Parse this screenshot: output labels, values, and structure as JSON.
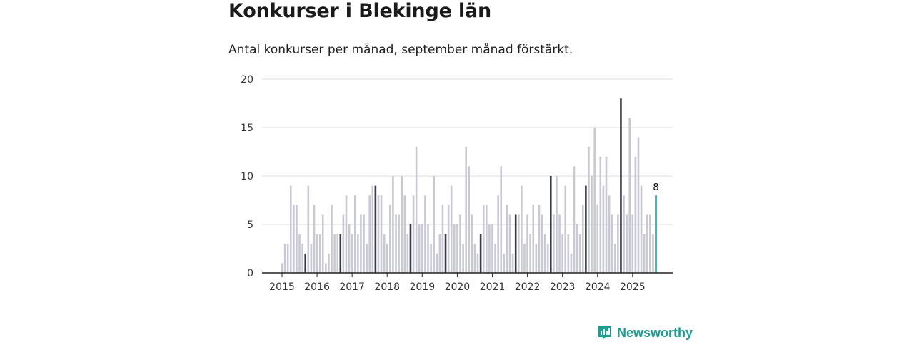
{
  "header": {
    "title": "Konkurser i Blekinge län",
    "subtitle": "Antal konkurser per månad, september månad förstärkt."
  },
  "brand": {
    "name": "Newsworthy",
    "color": "#1a9e8f"
  },
  "colors": {
    "normal": "#c9c9d3",
    "highlight": "#3a3a45",
    "latest": "#12a89a",
    "grid": "#dddddd",
    "axis": "#222222"
  },
  "chart_data": {
    "type": "bar",
    "title": "Konkurser i Blekinge län",
    "subtitle": "Antal konkurser per månad, september månad förstärkt.",
    "xlabel": "",
    "ylabel": "",
    "ylim": [
      0,
      20
    ],
    "yticks": [
      0,
      5,
      10,
      15,
      20
    ],
    "grid": true,
    "start": "2015-01",
    "highlight_month": 9,
    "year_labels": [
      "2015",
      "2016",
      "2017",
      "2018",
      "2019",
      "2020",
      "2021",
      "2022",
      "2023",
      "2024",
      "2025"
    ],
    "values": [
      1,
      3,
      3,
      9,
      7,
      7,
      4,
      3,
      2,
      9,
      3,
      7,
      4,
      4,
      6,
      1,
      2,
      7,
      4,
      4,
      4,
      6,
      8,
      5,
      4,
      8,
      4,
      6,
      6,
      3,
      8,
      9,
      9,
      8,
      8,
      4,
      3,
      7,
      10,
      6,
      6,
      10,
      8,
      4,
      5,
      8,
      13,
      5,
      5,
      8,
      5,
      3,
      10,
      2,
      4,
      7,
      4,
      7,
      9,
      5,
      5,
      6,
      3,
      13,
      11,
      6,
      3,
      2,
      4,
      7,
      7,
      5,
      5,
      3,
      8,
      11,
      2,
      7,
      6,
      2,
      6,
      6,
      9,
      3,
      6,
      4,
      7,
      3,
      7,
      6,
      4,
      3,
      10,
      6,
      10,
      6,
      4,
      9,
      4,
      2,
      11,
      5,
      4,
      7,
      9,
      13,
      10,
      15,
      7,
      12,
      9,
      12,
      8,
      6,
      3,
      6,
      18,
      8,
      6,
      16,
      6,
      12,
      14,
      9,
      4,
      6,
      6,
      4,
      8
    ],
    "latest_label": "8"
  }
}
